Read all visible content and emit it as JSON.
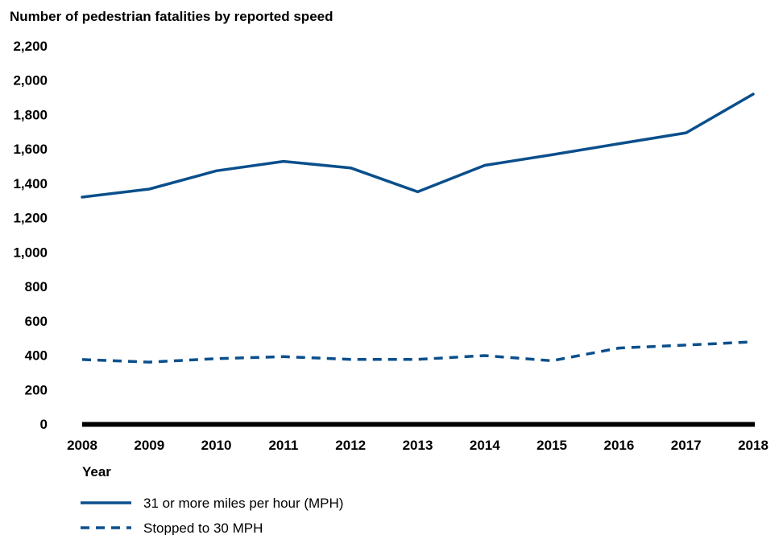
{
  "chart_data": {
    "type": "line",
    "title": "Number of pedestrian fatalities by reported speed",
    "xlabel": "Year",
    "ylabel": "",
    "x": [
      2008,
      2009,
      2010,
      2011,
      2012,
      2013,
      2014,
      2015,
      2016,
      2017,
      2018
    ],
    "x_tick_labels": [
      "2008",
      "2009",
      "2010",
      "2011",
      "2012",
      "2013",
      "2014",
      "2015",
      "2016",
      "2017",
      "2018"
    ],
    "ylim": [
      0,
      2200
    ],
    "y_ticks": [
      0,
      200,
      400,
      600,
      800,
      1000,
      1200,
      1400,
      1600,
      1800,
      2000,
      2200
    ],
    "y_tick_labels": [
      "0",
      "200",
      "400",
      "600",
      "800",
      "1,000",
      "1,200",
      "1,400",
      "1,600",
      "1,800",
      "2,000",
      "2,200"
    ],
    "grid": false,
    "legend_position": "bottom-left",
    "series": [
      {
        "name": "31 or more miles per hour (MPH)",
        "style": "solid",
        "color": "#0a4f8c",
        "values": [
          1320,
          1367,
          1473,
          1528,
          1490,
          1351,
          1505,
          1566,
          1631,
          1694,
          1919
        ]
      },
      {
        "name": "Stopped to 30 MPH",
        "style": "dashed",
        "color": "#0a4f8c",
        "values": [
          375,
          360,
          380,
          392,
          376,
          376,
          398,
          368,
          442,
          459,
          478
        ]
      }
    ]
  }
}
